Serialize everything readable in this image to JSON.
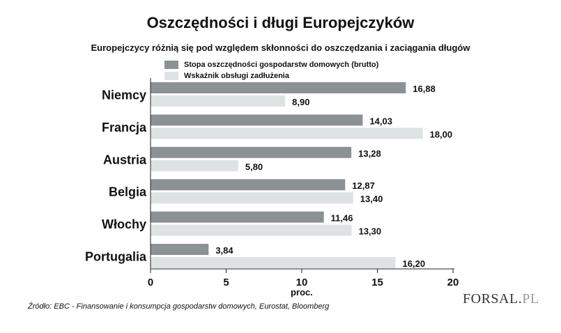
{
  "title": "Oszczędności i długi Europejczyków",
  "subtitle": "Europejczycy różnią się pod względem skłonności do oszczędzania i zaciągania długów",
  "source": "Źródło: EBC - Finansowanie i konsumpcja gospodarstw domowych, Eurostat, Bloomberg",
  "logo": {
    "main": "FORSAL",
    "dot": ".",
    "suffix": "PL"
  },
  "colors": {
    "series1": "#8c9294",
    "series2": "#dfe2e3",
    "axis": "#222222"
  },
  "chart_data": {
    "type": "bar",
    "orientation": "horizontal",
    "categories": [
      "Niemcy",
      "Francja",
      "Austria",
      "Belgia",
      "Włochy",
      "Portugalia"
    ],
    "series": [
      {
        "name": "Stopa oszczędności gospodarstw domowych (brutto)",
        "values": [
          16.88,
          14.03,
          13.28,
          12.87,
          11.46,
          3.84
        ],
        "labels": [
          "16,88",
          "14,03",
          "13,28",
          "12,87",
          "11,46",
          "3,84"
        ]
      },
      {
        "name": "Wskaźnik obsługi zadłużenia",
        "values": [
          8.9,
          18.0,
          5.8,
          13.4,
          13.3,
          16.2
        ],
        "labels": [
          "8,90",
          "18,00",
          "5,80",
          "13,40",
          "13,30",
          "16,20"
        ]
      }
    ],
    "xlabel": "proc.",
    "xlim": [
      0,
      20
    ],
    "xticks": [
      0,
      5,
      10,
      15,
      20
    ],
    "xtick_labels": [
      "0",
      "5",
      "10",
      "15",
      "20"
    ],
    "grid": false,
    "legend": "top"
  }
}
